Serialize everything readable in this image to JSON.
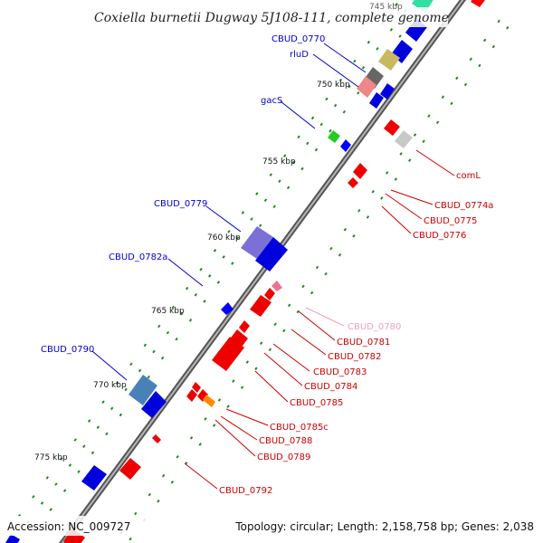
{
  "title": "Coxiella burnetii Dugway 5J108-111, complete genome",
  "footer": {
    "accession": "Accession: NC_009727",
    "summary": "Topology: circular; Length: 2,158,758 bp; Genes: 2,038"
  },
  "colors": {
    "backbone": "#777777",
    "plus_strand_label": "#0000cc",
    "minus_strand_label": "#cc0000",
    "minor_label": "#f0a0c0",
    "tick": "#228822"
  },
  "kbp_ticks": [
    "745 kbp",
    "750 kbp",
    "755 kbp",
    "760 kbp",
    "765 kbp",
    "770 kbp",
    "775 kbp"
  ],
  "gene_labels_plus": [
    "CBUD_0770",
    "rluD",
    "gacS",
    "CBUD_0779",
    "CBUD_0782a",
    "CBUD_0790"
  ],
  "gene_labels_minus": [
    "comL",
    "CBUD_0774a",
    "CBUD_0775",
    "CBUD_0776",
    "CBUD_0780",
    "CBUD_0781",
    "CBUD_0782",
    "CBUD_0783",
    "CBUD_0784",
    "CBUD_0785",
    "CBUD_0785c",
    "CBUD_0788",
    "CBUD_0789",
    "CBUD_0792"
  ]
}
